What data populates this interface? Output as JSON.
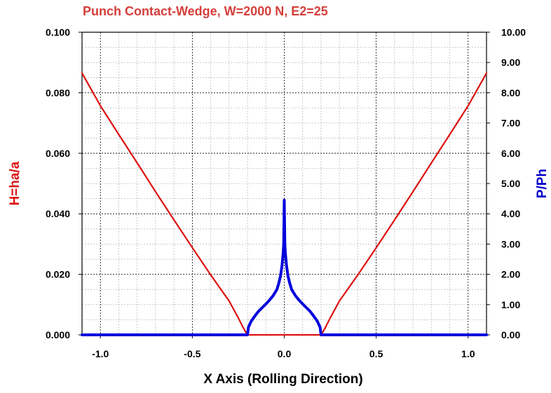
{
  "chart_data": {
    "type": "line",
    "title": "Punch Contact-Wedge, W=2000 N, E2=25",
    "xlabel": "X Axis (Rolling Direction)",
    "ylabel_left": "H=ha/a",
    "ylabel_right": "P/Ph",
    "xlim": [
      -1.1,
      1.1
    ],
    "ylim_left": [
      0,
      0.1
    ],
    "ylim_right": [
      0,
      10
    ],
    "x_ticks": [
      "-1.0",
      "-0.5",
      "0.0",
      "0.5",
      "1.0"
    ],
    "y_left_ticks": [
      "0.000",
      "0.020",
      "0.040",
      "0.060",
      "0.080",
      "0.100"
    ],
    "y_right_ticks": [
      "0.00",
      "1.00",
      "2.00",
      "3.00",
      "4.00",
      "5.00",
      "6.00",
      "7.00",
      "8.00",
      "9.00",
      "10.00"
    ],
    "grid": true,
    "colors": {
      "title": "#d43f3a",
      "gap": "#dd1111",
      "pressure": "#0000dd",
      "left_axis_label": "#dd1111",
      "right_axis_label": "#0000cc",
      "grid_major": "#000000",
      "grid_minor": "#bbbbbb"
    },
    "series": [
      {
        "axis": "left",
        "color": "#dd1111",
        "x": [
          -1.1,
          -1.0,
          -0.9,
          -0.8,
          -0.7,
          -0.6,
          -0.5,
          -0.4,
          -0.3,
          -0.25,
          -0.22,
          -0.2,
          -0.1,
          0.0,
          0.1,
          0.2,
          0.22,
          0.25,
          0.3,
          0.4,
          0.5,
          0.6,
          0.7,
          0.8,
          0.9,
          1.0,
          1.1
        ],
        "y": [
          0.0865,
          0.0757,
          0.0662,
          0.0568,
          0.0473,
          0.038,
          0.0288,
          0.0198,
          0.0112,
          0.0056,
          0.002,
          0.0,
          0.0,
          0.0,
          0.0,
          0.0,
          0.002,
          0.0056,
          0.0112,
          0.0198,
          0.0288,
          0.038,
          0.0473,
          0.0568,
          0.0662,
          0.0757,
          0.0865
        ]
      },
      {
        "axis": "right",
        "color": "#0000dd",
        "x": [
          -1.1,
          -0.2,
          -0.195,
          -0.18,
          -0.16,
          -0.14,
          -0.12,
          -0.1,
          -0.08,
          -0.06,
          -0.04,
          -0.03,
          -0.02,
          -0.012,
          -0.006,
          -0.003,
          -0.002,
          0.0,
          0.002,
          0.003,
          0.006,
          0.012,
          0.02,
          0.03,
          0.04,
          0.06,
          0.08,
          0.1,
          0.12,
          0.14,
          0.16,
          0.18,
          0.195,
          0.2,
          1.1
        ],
        "y": [
          0.0,
          0.0,
          0.25,
          0.45,
          0.62,
          0.78,
          0.9,
          1.02,
          1.15,
          1.3,
          1.5,
          1.7,
          1.95,
          2.3,
          2.7,
          3.0,
          3.5,
          4.45,
          3.5,
          3.0,
          2.7,
          2.3,
          1.95,
          1.7,
          1.5,
          1.3,
          1.15,
          1.02,
          0.9,
          0.78,
          0.62,
          0.45,
          0.25,
          0.0,
          0.0
        ]
      }
    ]
  }
}
